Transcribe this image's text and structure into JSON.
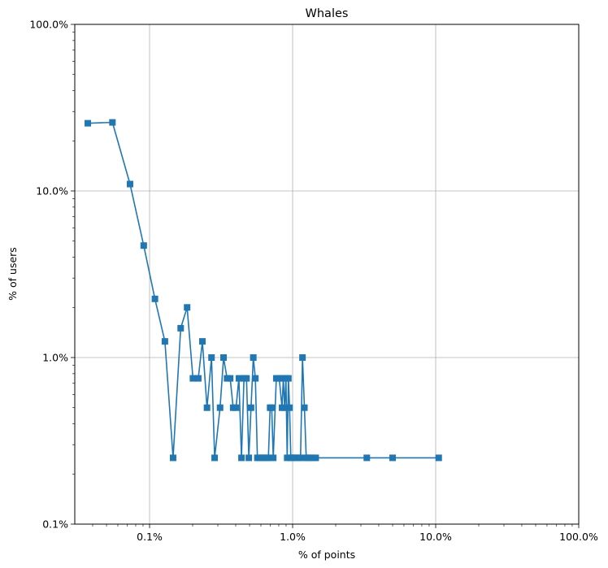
{
  "chart_data": {
    "type": "line",
    "title": "Whales",
    "xlabel": "% of points",
    "ylabel": "% of users",
    "xscale": "log",
    "yscale": "log",
    "xlim": [
      0.03,
      100
    ],
    "ylim": [
      0.1,
      100
    ],
    "grid": true,
    "x_tick_labels": [
      "0.1%",
      "1.0%",
      "10.0%",
      "100.0%"
    ],
    "y_tick_labels": [
      "0.1%",
      "1.0%",
      "10.0%",
      "100.0%"
    ],
    "marker": "square",
    "color": "#1f77b4",
    "series": [
      {
        "x": [
          0.037,
          0.055,
          0.073,
          0.091,
          0.109,
          0.128,
          0.146,
          0.165,
          0.183,
          0.201,
          0.219,
          0.234,
          0.252,
          0.271,
          0.285,
          0.311,
          0.329,
          0.348,
          0.366,
          0.384,
          0.402,
          0.421,
          0.439,
          0.457,
          0.476,
          0.494,
          0.512,
          0.531,
          0.549,
          0.567,
          0.586,
          0.604,
          0.622,
          0.641,
          0.659,
          0.677,
          0.696,
          0.714,
          0.732,
          0.769,
          0.806,
          0.843,
          0.861,
          0.879,
          0.898,
          0.916,
          0.934,
          0.952,
          0.971,
          0.989,
          1.007,
          1.026,
          1.062,
          1.099,
          1.136,
          1.172,
          1.209,
          1.245,
          1.282,
          1.318,
          1.392,
          1.45,
          3.3,
          5.0,
          10.5
        ],
        "y": [
          25.5,
          25.8,
          11.0,
          4.7,
          2.25,
          1.25,
          0.25,
          1.5,
          2.0,
          0.75,
          0.75,
          1.25,
          0.5,
          1.0,
          0.25,
          0.5,
          1.0,
          0.75,
          0.75,
          0.5,
          0.5,
          0.75,
          0.25,
          0.75,
          0.75,
          0.25,
          0.5,
          1.0,
          0.75,
          0.25,
          0.25,
          0.25,
          0.25,
          0.25,
          0.25,
          0.25,
          0.5,
          0.5,
          0.25,
          0.75,
          0.75,
          0.5,
          0.75,
          0.5,
          0.75,
          0.25,
          0.75,
          0.5,
          0.25,
          0.25,
          0.25,
          0.25,
          0.25,
          0.25,
          0.25,
          1.0,
          0.5,
          0.25,
          0.25,
          0.25,
          0.25,
          0.25,
          0.25,
          0.25,
          0.25
        ]
      }
    ]
  }
}
